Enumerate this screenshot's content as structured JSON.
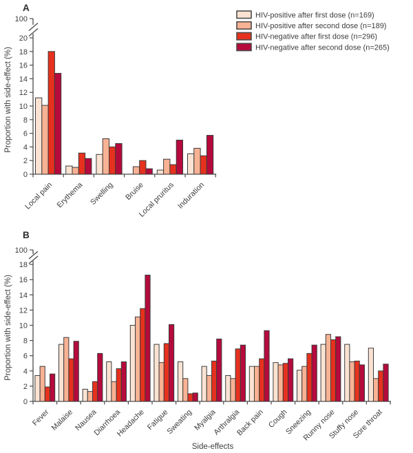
{
  "figure": {
    "panel_a_letter": "A",
    "panel_b_letter": "B",
    "y_axis_label": "Proportion with side-effect (%)",
    "x_axis_label": "Side-effects"
  },
  "legend": {
    "position": "top-right",
    "items": [
      {
        "label": "HIV-positive after first dose (n=169)",
        "color": "#fbe3d3"
      },
      {
        "label": "HIV-positive after second dose (n=189)",
        "color": "#f8b294"
      },
      {
        "label": "HIV-negative after first dose (n=296)",
        "color": "#e6311e"
      },
      {
        "label": "HIV-negative after second dose (n=265)",
        "color": "#b60a3c"
      }
    ]
  },
  "colors": {
    "series": [
      "#fbe3d3",
      "#f8b294",
      "#e6311e",
      "#b60a3c"
    ],
    "bar_outline": "#3b3b3b",
    "axis": "#4a4a4a",
    "text": "#3d3d3d"
  },
  "chart_data": [
    {
      "type": "bar",
      "panel": "A",
      "title": "",
      "xlabel": "",
      "ylabel": "Proportion with side-effect (%)",
      "grid": false,
      "ylim": [
        0,
        20
      ],
      "y_ticks": [
        0,
        2,
        4,
        6,
        8,
        10,
        12,
        14,
        16,
        18,
        20
      ],
      "y_axis_break": {
        "after_tick": 20,
        "resume_label": 100
      },
      "categories": [
        "Local pain",
        "Erythema",
        "Swelling",
        "Bruise",
        "Local pruritus",
        "Induration"
      ],
      "series": [
        {
          "name": "HIV-positive after first dose (n=169)",
          "values": [
            11.2,
            1.2,
            2.9,
            0,
            0.6,
            3.0
          ]
        },
        {
          "name": "HIV-positive after second dose (n=189)",
          "values": [
            10.1,
            1.0,
            5.2,
            1.1,
            2.2,
            3.8
          ]
        },
        {
          "name": "HIV-negative after first dose (n=296)",
          "values": [
            18.0,
            3.1,
            4.0,
            2.0,
            1.4,
            2.7
          ]
        },
        {
          "name": "HIV-negative after second dose (n=265)",
          "values": [
            14.8,
            2.3,
            4.5,
            0.8,
            5.0,
            5.7
          ]
        }
      ]
    },
    {
      "type": "bar",
      "panel": "B",
      "title": "",
      "xlabel": "Side-effects",
      "ylabel": "Proportion with side-effect (%)",
      "grid": false,
      "ylim": [
        0,
        18
      ],
      "y_ticks": [
        0,
        2,
        4,
        6,
        8,
        10,
        12,
        14,
        16,
        18
      ],
      "y_axis_break": {
        "after_tick": 18,
        "resume_label": 100
      },
      "categories": [
        "Fever",
        "Malaise",
        "Nausea",
        "Diarrhoea",
        "Headache",
        "Fatigue",
        "Sweating",
        "Myalgia",
        "Arthralgia",
        "Back pain",
        "Cough",
        "Sneezing",
        "Runny nose",
        "Stuffy nose",
        "Sore throat"
      ],
      "series": [
        {
          "name": "HIV-positive after first dose (n=169)",
          "values": [
            3.4,
            7.5,
            1.6,
            5.2,
            10.0,
            7.5,
            5.2,
            4.6,
            3.4,
            4.6,
            5.1,
            4.1,
            7.5,
            7.5,
            7.0
          ]
        },
        {
          "name": "HIV-positive after second dose (n=189)",
          "values": [
            4.6,
            8.4,
            1.3,
            2.6,
            11.1,
            5.1,
            3.0,
            3.4,
            3.0,
            4.6,
            4.8,
            4.6,
            8.8,
            5.2,
            3.0
          ]
        },
        {
          "name": "HIV-negative after first dose (n=296)",
          "values": [
            1.9,
            5.6,
            2.6,
            4.3,
            12.2,
            7.6,
            1.0,
            5.3,
            6.9,
            5.6,
            5.0,
            6.3,
            8.1,
            5.3,
            4.0
          ]
        },
        {
          "name": "HIV-negative after second dose (n=265)",
          "values": [
            3.6,
            7.9,
            6.3,
            5.2,
            16.6,
            10.1,
            1.1,
            8.2,
            7.4,
            9.3,
            5.6,
            7.4,
            8.5,
            4.8,
            4.9
          ]
        }
      ]
    }
  ]
}
